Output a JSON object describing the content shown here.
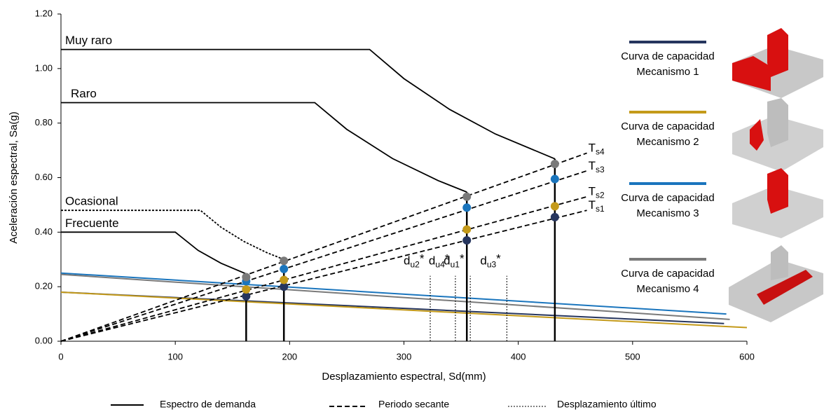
{
  "chart_data": {
    "type": "line",
    "xlabel": "Desplazamiento espectral, Sd(mm)",
    "ylabel": "Aceleración espectral, Sa(g)",
    "xlim": [
      0,
      600
    ],
    "xticks": [
      0,
      100,
      200,
      300,
      400,
      500,
      600
    ],
    "ylim": [
      0,
      1.2
    ],
    "yticks": [
      {
        "value": 0,
        "label": "0.00"
      },
      {
        "value": 0.2,
        "label": "0.20"
      },
      {
        "value": 0.4,
        "label": "0.40"
      },
      {
        "value": 0.6,
        "label": "0.60"
      },
      {
        "value": 0.8,
        "label": "0.80"
      },
      {
        "value": 1.0,
        "label": "1.00"
      },
      {
        "value": 1.2,
        "label": "1.20"
      }
    ],
    "demand_spectra": {
      "legend": "Espectro de demanda",
      "color": "#000000",
      "curves": [
        {
          "name": "Muy raro",
          "x": [
            0,
            270,
            300,
            340,
            380,
            432
          ],
          "values": [
            1.07,
            1.07,
            0.963,
            0.85,
            0.76,
            0.669
          ]
        },
        {
          "name": "Raro",
          "x": [
            0,
            222,
            250,
            290,
            330,
            355
          ],
          "values": [
            0.875,
            0.875,
            0.777,
            0.67,
            0.589,
            0.547
          ]
        },
        {
          "name": "Ocasional",
          "x": [
            0,
            122,
            140,
            160,
            180,
            195
          ],
          "values": [
            0.48,
            0.48,
            0.418,
            0.366,
            0.325,
            0.3
          ]
        },
        {
          "name": "Frecuente",
          "x": [
            0,
            100,
            120,
            140,
            162
          ],
          "values": [
            0.4,
            0.4,
            0.333,
            0.286,
            0.247
          ]
        }
      ]
    },
    "secant": {
      "legend": "Periodo secante",
      "lines": [
        {
          "main": "T",
          "sub": "s4",
          "x": [
            0,
            460
          ],
          "values": [
            0,
            0.69
          ]
        },
        {
          "main": "T",
          "sub": "s3",
          "x": [
            0,
            460
          ],
          "values": [
            0,
            0.625
          ]
        },
        {
          "main": "T",
          "sub": "s2",
          "x": [
            0,
            460
          ],
          "values": [
            0,
            0.53
          ]
        },
        {
          "main": "T",
          "sub": "s1",
          "x": [
            0,
            460
          ],
          "values": [
            0,
            0.48
          ]
        }
      ]
    },
    "ultimate": {
      "legend": "Desplazamiento último",
      "lines": [
        {
          "main": "d",
          "sub": "u2",
          "sup": "*",
          "x": 323,
          "value": 0.24
        },
        {
          "main": "d",
          "sub": "u4",
          "sup": "*",
          "x": 345,
          "value": 0.24
        },
        {
          "main": "d",
          "sub": "u1",
          "sup": "*",
          "x": 358,
          "value": 0.24
        },
        {
          "main": "d",
          "sub": "u3",
          "sup": "*",
          "x": 390,
          "value": 0.24
        }
      ]
    },
    "series": [
      {
        "name": "Curva de capacidad Mecanismo 1",
        "color": "#26355e",
        "x": [
          0,
          580
        ],
        "values": [
          0.18,
          0.065
        ],
        "points_x": [
          162,
          195,
          355,
          432
        ],
        "points": [
          0.165,
          0.2,
          0.37,
          0.455
        ]
      },
      {
        "name": "Curva de capacidad Mecanismo 2",
        "color": "#c49a1a",
        "x": [
          0,
          600
        ],
        "values": [
          0.18,
          0.05
        ],
        "points_x": [
          162,
          195,
          355,
          432
        ],
        "points": [
          0.19,
          0.225,
          0.41,
          0.495
        ]
      },
      {
        "name": "Curva de capacidad Mecanismo 3",
        "color": "#1a75bd",
        "x": [
          0,
          582
        ],
        "values": [
          0.25,
          0.1
        ],
        "points_x": [
          162,
          195,
          355,
          432
        ],
        "points": [
          0.22,
          0.265,
          0.49,
          0.595
        ]
      },
      {
        "name": "Curva de capacidad Mecanismo 4",
        "color": "#7a7a7a",
        "x": [
          0,
          585
        ],
        "values": [
          0.245,
          0.08
        ],
        "points_x": [
          162,
          195,
          355,
          432
        ],
        "points": [
          0.235,
          0.295,
          0.53,
          0.65
        ]
      }
    ]
  }
}
